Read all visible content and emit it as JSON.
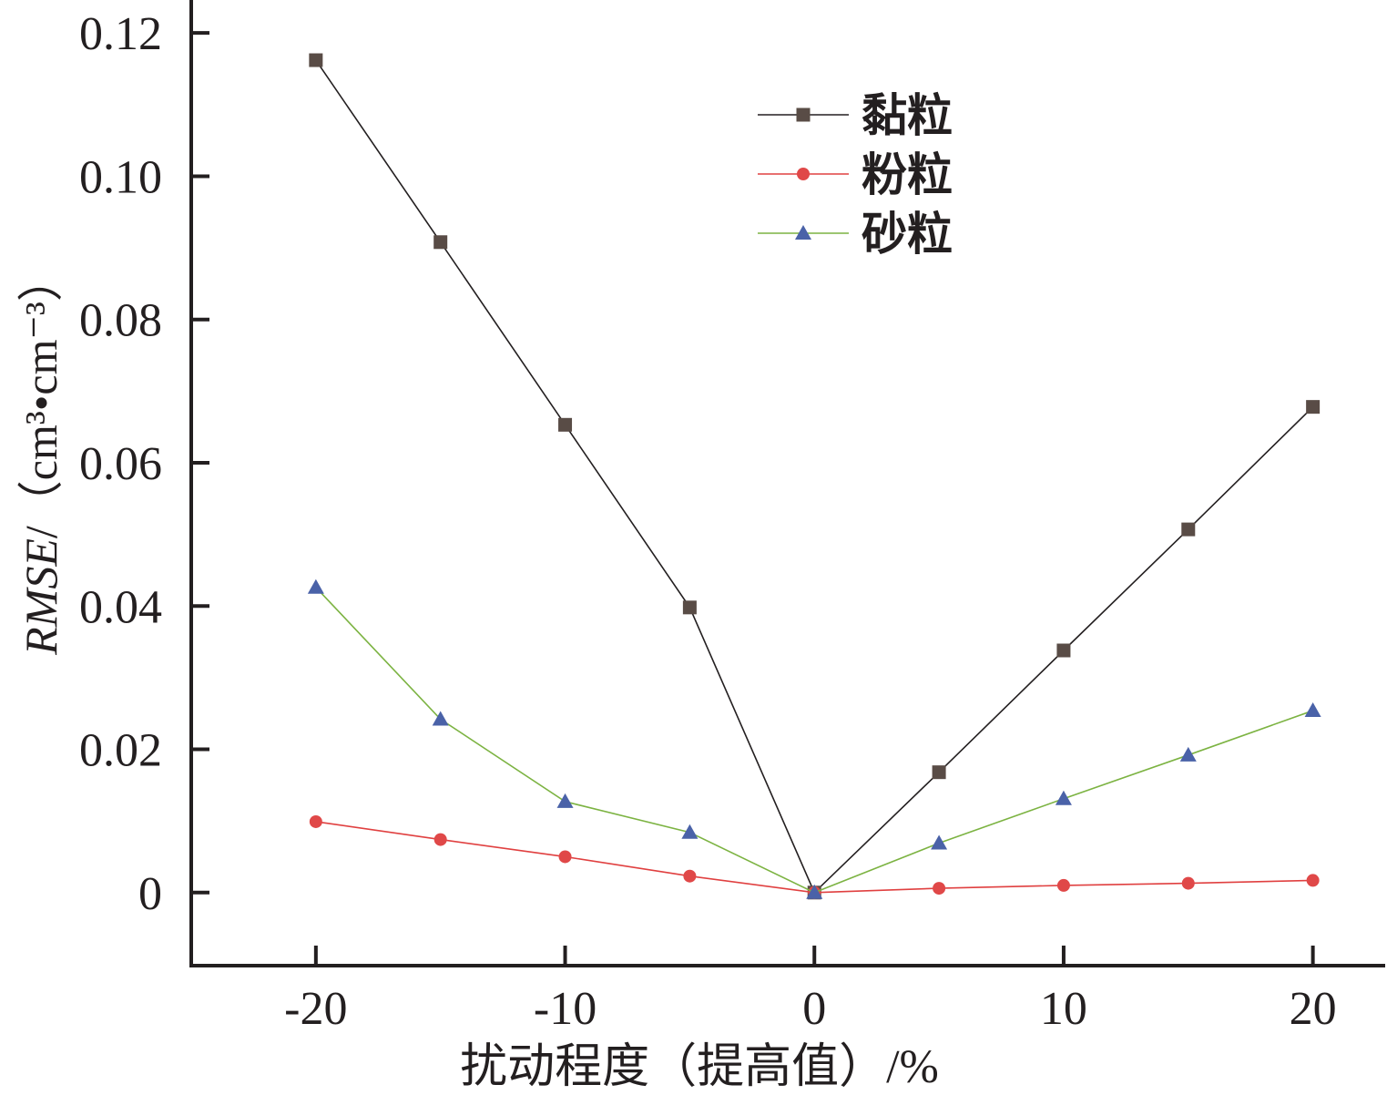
{
  "chart_data": {
    "type": "line",
    "title": "",
    "xlabel": "扰动程度（提高值）/%",
    "ylabel_italic": "RMSE",
    "ylabel_unit": "/（cm³•cm⁻³）",
    "xlim": [
      -25,
      22.9
    ],
    "ylim": [
      -0.0102,
      0.1246
    ],
    "x_ticks": [
      -20,
      -10,
      0,
      10,
      20
    ],
    "x_tick_labels": [
      "-20",
      "-10",
      "0",
      "10",
      "20"
    ],
    "y_ticks": [
      0,
      0.02,
      0.04,
      0.06,
      0.08,
      0.1,
      0.12
    ],
    "y_tick_labels": [
      "0",
      "0.02",
      "0.04",
      "0.06",
      "0.08",
      "0.10",
      "0.12"
    ],
    "grid": false,
    "legend_position": "top-center",
    "x": [
      -20,
      -15,
      -10,
      -5,
      0,
      5,
      10,
      15,
      20
    ],
    "series": [
      {
        "name": "黏粒",
        "marker": "square",
        "line_color": "#231f20",
        "marker_color": "#594c46",
        "values": [
          0.1162,
          0.0908,
          0.0653,
          0.0398,
          0,
          0.0168,
          0.0338,
          0.0507,
          0.0678
        ]
      },
      {
        "name": "粉粒",
        "marker": "circle",
        "line_color": "#e04040",
        "marker_color": "#e04848",
        "values": [
          0.0099,
          0.0074,
          0.005,
          0.0023,
          0,
          0.0006,
          0.001,
          0.0013,
          0.0017
        ]
      },
      {
        "name": "砂粒",
        "marker": "triangle",
        "line_color": "#7cb342",
        "marker_color": "#4a62a8",
        "values": [
          0.0426,
          0.0242,
          0.0127,
          0.0084,
          0,
          0.0069,
          0.0131,
          0.0192,
          0.0254
        ]
      }
    ]
  }
}
